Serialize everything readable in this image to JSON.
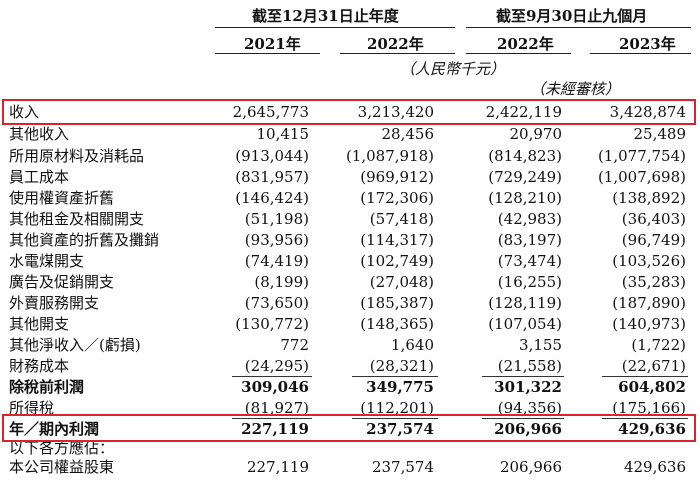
{
  "header": {
    "group1": "截至12月31日止年度",
    "group2": "截至9月30日止九個月",
    "years": [
      "2021年",
      "2022年",
      "2022年",
      "2023年"
    ],
    "unit": "（人民幣千元）",
    "unaudited": "（未經審核）"
  },
  "rows": [
    {
      "label": "收入",
      "values": [
        "2,645,773",
        "3,213,420",
        "2,422,119",
        "3,428,874"
      ],
      "bold": false
    },
    {
      "label": "其他收入",
      "values": [
        "10,415",
        "28,456",
        "20,970",
        "25,489"
      ],
      "bold": false
    },
    {
      "label": "所用原材料及消耗品",
      "values": [
        "(913,044)",
        "(1,087,918)",
        "(814,823)",
        "(1,077,754)"
      ],
      "bold": false
    },
    {
      "label": "員工成本",
      "values": [
        "(831,957)",
        "(969,912)",
        "(729,249)",
        "(1,007,698)"
      ],
      "bold": false
    },
    {
      "label": "使用權資產折舊",
      "values": [
        "(146,424)",
        "(172,306)",
        "(128,210)",
        "(138,892)"
      ],
      "bold": false
    },
    {
      "label": "其他租金及相關開支",
      "values": [
        "(51,198)",
        "(57,418)",
        "(42,983)",
        "(36,403)"
      ],
      "bold": false
    },
    {
      "label": "其他資產的折舊及攤銷",
      "values": [
        "(93,956)",
        "(114,317)",
        "(83,197)",
        "(96,749)"
      ],
      "bold": false
    },
    {
      "label": "水電煤開支",
      "values": [
        "(74,419)",
        "(102,749)",
        "(73,474)",
        "(103,526)"
      ],
      "bold": false
    },
    {
      "label": "廣告及促銷開支",
      "values": [
        "(8,199)",
        "(27,048)",
        "(16,255)",
        "(35,283)"
      ],
      "bold": false
    },
    {
      "label": "外賣服務開支",
      "values": [
        "(73,650)",
        "(185,387)",
        "(128,119)",
        "(187,890)"
      ],
      "bold": false
    },
    {
      "label": "其他開支",
      "values": [
        "(130,772)",
        "(148,365)",
        "(107,054)",
        "(140,973)"
      ],
      "bold": false
    },
    {
      "label": "其他淨收入／(虧損)",
      "values": [
        "772",
        "1,640",
        "3,155",
        "(1,722)"
      ],
      "bold": false
    },
    {
      "label": "財務成本",
      "values": [
        "(24,295)",
        "(28,321)",
        "(21,558)",
        "(22,671)"
      ],
      "bold": false
    },
    {
      "label": "除稅前利潤",
      "values": [
        "309,046",
        "349,775",
        "301,322",
        "604,802"
      ],
      "bold": true
    },
    {
      "label": "所得稅",
      "values": [
        "(81,927)",
        "(112,201)",
        "(94,356)",
        "(175,166)"
      ],
      "bold": false
    },
    {
      "label": "年／期內利潤",
      "values": [
        "227,119",
        "237,574",
        "206,966",
        "429,636"
      ],
      "bold": true
    },
    {
      "label": "以下各方應佔：",
      "values": [
        "",
        "",
        "",
        ""
      ],
      "bold": false
    },
    {
      "label": "本公司權益股東",
      "values": [
        "227,119",
        "237,574",
        "206,966",
        "429,636"
      ],
      "bold": false
    }
  ],
  "colors": {
    "highlight_box": "#d9232e"
  }
}
